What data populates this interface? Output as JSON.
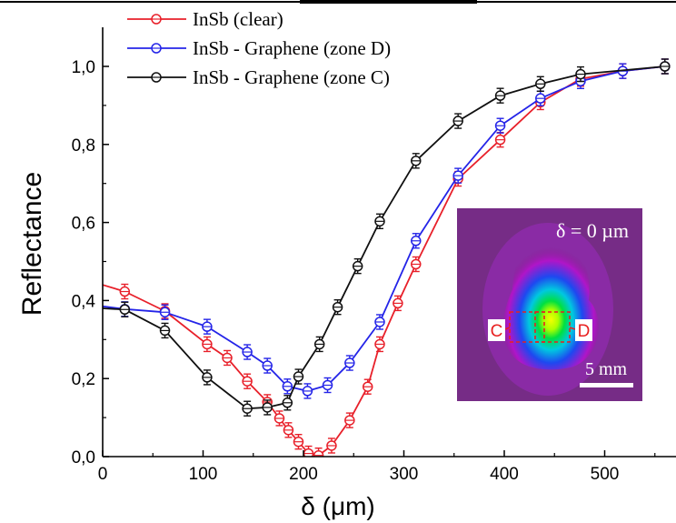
{
  "chart_data": {
    "type": "line",
    "xlabel": "δ (μm)",
    "ylabel": "Reflectance",
    "xlim": [
      0,
      560
    ],
    "ylim": [
      0,
      1.1
    ],
    "x_ticks": [
      "0",
      "100",
      "200",
      "300",
      "400",
      "500"
    ],
    "y_ticks": [
      "0,0",
      "0,2",
      "0,4",
      "0,6",
      "0,8",
      "1,0"
    ],
    "grid": false,
    "legend_position": "top-left",
    "series": [
      {
        "name": "InSb (clear)",
        "color": "#e8202a",
        "x": [
          0,
          22,
          62,
          104,
          124,
          144,
          164,
          176,
          185,
          195,
          205,
          215,
          228,
          246,
          264,
          276,
          294,
          312,
          354,
          396,
          436,
          476,
          518,
          560
        ],
        "y": [
          0.44,
          0.423,
          0.373,
          0.288,
          0.253,
          0.193,
          0.14,
          0.098,
          0.068,
          0.038,
          0.008,
          0.003,
          0.028,
          0.093,
          0.179,
          0.288,
          0.393,
          0.493,
          0.712,
          0.812,
          0.908,
          0.968,
          0.988,
          1.0
        ]
      },
      {
        "name": "InSb - Graphene (zone D)",
        "color": "#2424e8",
        "x": [
          0,
          22,
          62,
          104,
          144,
          164,
          184,
          204,
          224,
          246,
          276,
          312,
          354,
          396,
          436,
          476,
          518,
          560
        ],
        "y": [
          0.385,
          0.378,
          0.37,
          0.333,
          0.268,
          0.233,
          0.18,
          0.168,
          0.183,
          0.24,
          0.345,
          0.553,
          0.72,
          0.848,
          0.918,
          0.962,
          0.988,
          1.0
        ]
      },
      {
        "name": "InSb - Graphene (zone C)",
        "color": "#101010",
        "x": [
          0,
          22,
          62,
          104,
          144,
          164,
          184,
          195,
          216,
          234,
          254,
          276,
          312,
          354,
          396,
          436,
          476,
          560
        ],
        "y": [
          0.38,
          0.377,
          0.323,
          0.203,
          0.123,
          0.126,
          0.138,
          0.205,
          0.288,
          0.383,
          0.488,
          0.603,
          0.758,
          0.86,
          0.925,
          0.955,
          0.98,
          1.0
        ]
      }
    ],
    "inset": {
      "annotation": "δ = 0 µm",
      "scale_bar": "5 mm",
      "label_left": "C",
      "label_right": "D"
    }
  }
}
